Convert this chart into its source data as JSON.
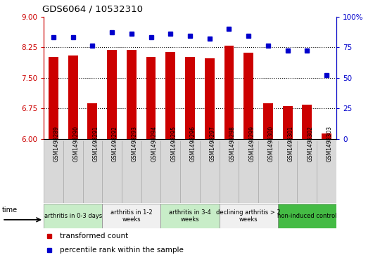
{
  "title": "GDS6064 / 10532310",
  "samples": [
    "GSM1498289",
    "GSM1498290",
    "GSM1498291",
    "GSM1498292",
    "GSM1498293",
    "GSM1498294",
    "GSM1498295",
    "GSM1498296",
    "GSM1498297",
    "GSM1498298",
    "GSM1498299",
    "GSM1498300",
    "GSM1498301",
    "GSM1498302",
    "GSM1498303"
  ],
  "bar_values": [
    8.02,
    8.04,
    6.88,
    8.18,
    8.18,
    8.02,
    8.14,
    8.02,
    7.98,
    8.28,
    8.12,
    6.88,
    6.8,
    6.84,
    6.14
  ],
  "dot_values": [
    83,
    83,
    76,
    87,
    86,
    83,
    86,
    84,
    82,
    90,
    84,
    76,
    72,
    72,
    52
  ],
  "groups": [
    {
      "label": "arthritis in 0-3 days",
      "start": 0,
      "end": 3,
      "color": "#c8edc8"
    },
    {
      "label": "arthritis in 1-2\nweeks",
      "start": 3,
      "end": 6,
      "color": "#f0f0f0"
    },
    {
      "label": "arthritis in 3-4\nweeks",
      "start": 6,
      "end": 9,
      "color": "#c8edc8"
    },
    {
      "label": "declining arthritis > 2\nweeks",
      "start": 9,
      "end": 12,
      "color": "#f0f0f0"
    },
    {
      "label": "non-induced control",
      "start": 12,
      "end": 15,
      "color": "#44bb44"
    }
  ],
  "bar_color": "#cc0000",
  "dot_color": "#0000cc",
  "ylim_left": [
    6,
    9
  ],
  "ylim_right": [
    0,
    100
  ],
  "yticks_left": [
    6,
    6.75,
    7.5,
    8.25,
    9
  ],
  "yticks_right": [
    0,
    25,
    50,
    75,
    100
  ],
  "grid_lines": [
    6.75,
    7.5,
    8.25
  ],
  "sample_box_color": "#d8d8d8",
  "background_color": "#ffffff"
}
